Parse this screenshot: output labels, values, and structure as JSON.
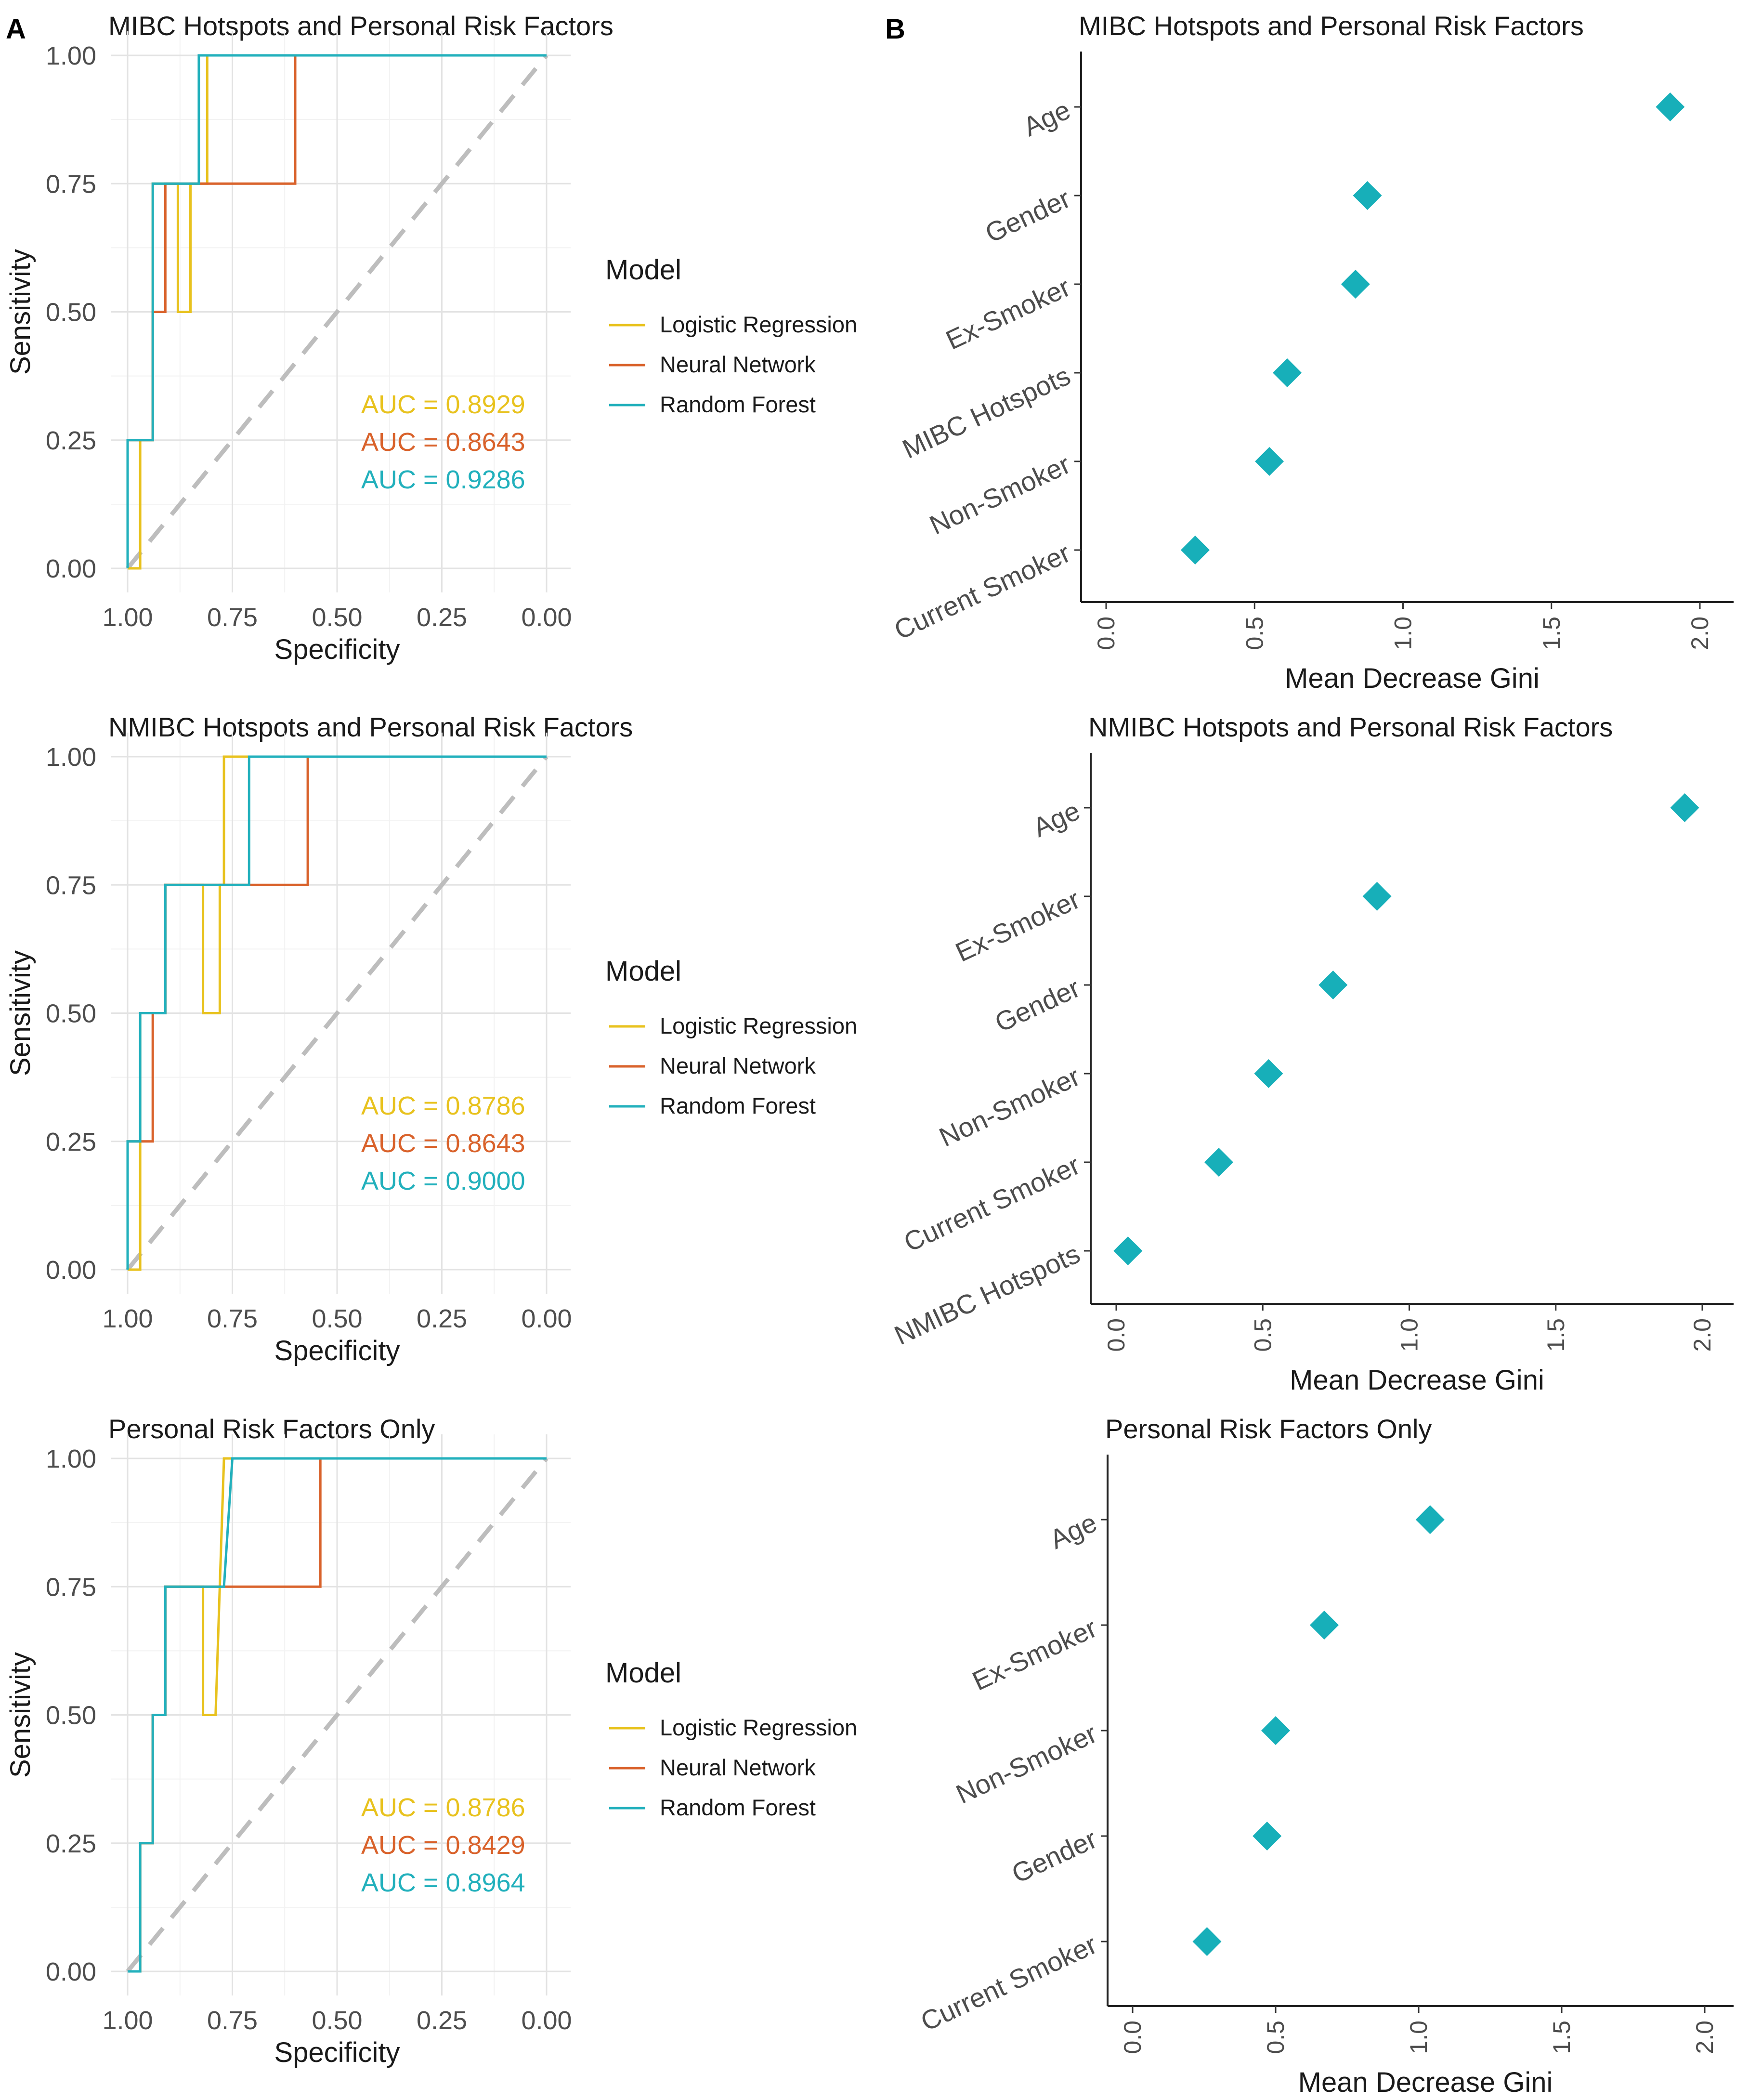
{
  "figure": {
    "panel_a_label": "A",
    "panel_b_label": "B",
    "legend_title": "Model"
  },
  "colors": {
    "logistic": "#E8C21E",
    "neural": "#D9622B",
    "forest": "#22B0BC",
    "diagonal": "#BDBDBD",
    "points": "#17AFB9"
  },
  "chart_data": [
    {
      "type": "line",
      "subtype": "roc",
      "title": "MIBC Hotspots and Personal Risk Factors",
      "xlabel": "Specificity",
      "ylabel": "Sensitivity",
      "xlim": [
        1.0,
        0.0
      ],
      "ylim": [
        0.0,
        1.0
      ],
      "xticks": [
        "1.00",
        "0.75",
        "0.50",
        "0.25",
        "0.00"
      ],
      "yticks": [
        "0.00",
        "0.25",
        "0.50",
        "0.75",
        "1.00"
      ],
      "grid": true,
      "legend_position": "right",
      "series": [
        {
          "name": "Logistic Regression",
          "color": "#E8C21E",
          "auc_label": "AUC = 0.8929",
          "points": [
            [
              1.0,
              0.0
            ],
            [
              0.97,
              0.0
            ],
            [
              0.97,
              0.25
            ],
            [
              0.94,
              0.25
            ],
            [
              0.94,
              0.75
            ],
            [
              0.88,
              0.75
            ],
            [
              0.88,
              0.5
            ],
            [
              0.85,
              0.5
            ],
            [
              0.85,
              0.75
            ],
            [
              0.81,
              0.75
            ],
            [
              0.81,
              1.0
            ],
            [
              0.0,
              1.0
            ]
          ]
        },
        {
          "name": "Neural Network",
          "color": "#D9622B",
          "auc_label": "AUC = 0.8643",
          "points": [
            [
              1.0,
              0.0
            ],
            [
              1.0,
              0.25
            ],
            [
              0.94,
              0.25
            ],
            [
              0.94,
              0.5
            ],
            [
              0.91,
              0.5
            ],
            [
              0.91,
              0.75
            ],
            [
              0.6,
              0.75
            ],
            [
              0.6,
              1.0
            ],
            [
              0.0,
              1.0
            ]
          ]
        },
        {
          "name": "Random Forest",
          "color": "#22B0BC",
          "auc_label": "AUC = 0.9286",
          "points": [
            [
              1.0,
              0.0
            ],
            [
              1.0,
              0.25
            ],
            [
              0.94,
              0.25
            ],
            [
              0.94,
              0.75
            ],
            [
              0.83,
              0.75
            ],
            [
              0.83,
              1.0
            ],
            [
              0.0,
              1.0
            ]
          ]
        }
      ]
    },
    {
      "type": "scatter",
      "subtype": "variable-importance",
      "title": "MIBC Hotspots and Personal Risk Factors",
      "xlabel": "Mean Decrease Gini",
      "xlim": [
        -0.08,
        2.08
      ],
      "xticks": [
        "0.0",
        "0.5",
        "1.0",
        "1.5",
        "2.0"
      ],
      "categories": [
        "Age",
        "Gender",
        "Ex-Smoker",
        "MIBC Hotspots",
        "Non-Smoker",
        "Current Smoker"
      ],
      "values": [
        1.9,
        0.88,
        0.84,
        0.61,
        0.55,
        0.3
      ]
    },
    {
      "type": "line",
      "subtype": "roc",
      "title": "NMIBC Hotspots and Personal Risk Factors",
      "xlabel": "Specificity",
      "ylabel": "Sensitivity",
      "xlim": [
        1.0,
        0.0
      ],
      "ylim": [
        0.0,
        1.0
      ],
      "xticks": [
        "1.00",
        "0.75",
        "0.50",
        "0.25",
        "0.00"
      ],
      "yticks": [
        "0.00",
        "0.25",
        "0.50",
        "0.75",
        "1.00"
      ],
      "grid": true,
      "legend_position": "right",
      "series": [
        {
          "name": "Logistic Regression",
          "color": "#E8C21E",
          "auc_label": "AUC = 0.8786",
          "points": [
            [
              1.0,
              0.0
            ],
            [
              0.97,
              0.0
            ],
            [
              0.97,
              0.5
            ],
            [
              0.91,
              0.5
            ],
            [
              0.91,
              0.75
            ],
            [
              0.82,
              0.75
            ],
            [
              0.82,
              0.5
            ],
            [
              0.78,
              0.5
            ],
            [
              0.78,
              0.75
            ],
            [
              0.77,
              0.75
            ],
            [
              0.77,
              1.0
            ],
            [
              0.0,
              1.0
            ]
          ]
        },
        {
          "name": "Neural Network",
          "color": "#D9622B",
          "auc_label": "AUC = 0.8643",
          "points": [
            [
              1.0,
              0.0
            ],
            [
              1.0,
              0.25
            ],
            [
              0.94,
              0.25
            ],
            [
              0.94,
              0.5
            ],
            [
              0.91,
              0.5
            ],
            [
              0.91,
              0.75
            ],
            [
              0.57,
              0.75
            ],
            [
              0.57,
              1.0
            ],
            [
              0.0,
              1.0
            ]
          ]
        },
        {
          "name": "Random Forest",
          "color": "#22B0BC",
          "auc_label": "AUC = 0.9000",
          "points": [
            [
              1.0,
              0.0
            ],
            [
              1.0,
              0.25
            ],
            [
              0.97,
              0.25
            ],
            [
              0.97,
              0.5
            ],
            [
              0.91,
              0.5
            ],
            [
              0.91,
              0.75
            ],
            [
              0.71,
              0.75
            ],
            [
              0.71,
              1.0
            ],
            [
              0.0,
              1.0
            ]
          ]
        }
      ]
    },
    {
      "type": "scatter",
      "subtype": "variable-importance",
      "title": "NMIBC Hotspots and Personal Risk Factors",
      "xlabel": "Mean Decrease Gini",
      "xlim": [
        -0.08,
        2.08
      ],
      "xticks": [
        "0.0",
        "0.5",
        "1.0",
        "1.5",
        "2.0"
      ],
      "categories": [
        "Age",
        "Ex-Smoker",
        "Gender",
        "Non-Smoker",
        "Current Smoker",
        "NMIBC Hotspots"
      ],
      "values": [
        1.94,
        0.89,
        0.74,
        0.52,
        0.35,
        0.04
      ]
    },
    {
      "type": "line",
      "subtype": "roc",
      "title": "Personal Risk Factors Only",
      "xlabel": "Specificity",
      "ylabel": "Sensitivity",
      "xlim": [
        1.0,
        0.0
      ],
      "ylim": [
        0.0,
        1.0
      ],
      "xticks": [
        "1.00",
        "0.75",
        "0.50",
        "0.25",
        "0.00"
      ],
      "yticks": [
        "0.00",
        "0.25",
        "0.50",
        "0.75",
        "1.00"
      ],
      "grid": true,
      "legend_position": "right",
      "series": [
        {
          "name": "Logistic Regression",
          "color": "#E8C21E",
          "auc_label": "AUC = 0.8786",
          "points": [
            [
              1.0,
              0.0
            ],
            [
              0.97,
              0.0
            ],
            [
              0.97,
              0.25
            ],
            [
              0.94,
              0.25
            ],
            [
              0.94,
              0.5
            ],
            [
              0.91,
              0.5
            ],
            [
              0.91,
              0.75
            ],
            [
              0.82,
              0.75
            ],
            [
              0.82,
              0.5
            ],
            [
              0.79,
              0.5
            ],
            [
              0.77,
              1.0
            ],
            [
              0.0,
              1.0
            ]
          ]
        },
        {
          "name": "Neural Network",
          "color": "#D9622B",
          "auc_label": "AUC = 0.8429",
          "points": [
            [
              1.0,
              0.0
            ],
            [
              0.97,
              0.0
            ],
            [
              0.97,
              0.25
            ],
            [
              0.94,
              0.25
            ],
            [
              0.94,
              0.5
            ],
            [
              0.91,
              0.5
            ],
            [
              0.91,
              0.75
            ],
            [
              0.54,
              0.75
            ],
            [
              0.54,
              1.0
            ],
            [
              0.0,
              1.0
            ]
          ]
        },
        {
          "name": "Random Forest",
          "color": "#22B0BC",
          "auc_label": "AUC = 0.8964",
          "points": [
            [
              1.0,
              0.0
            ],
            [
              0.97,
              0.0
            ],
            [
              0.97,
              0.25
            ],
            [
              0.94,
              0.25
            ],
            [
              0.94,
              0.5
            ],
            [
              0.91,
              0.5
            ],
            [
              0.91,
              0.75
            ],
            [
              0.77,
              0.75
            ],
            [
              0.75,
              1.0
            ],
            [
              0.0,
              1.0
            ]
          ]
        }
      ]
    },
    {
      "type": "scatter",
      "subtype": "variable-importance",
      "title": "Personal Risk Factors Only",
      "xlabel": "Mean Decrease Gini",
      "xlim": [
        -0.08,
        2.08
      ],
      "xticks": [
        "0.0",
        "0.5",
        "1.0",
        "1.5",
        "2.0"
      ],
      "categories": [
        "Age",
        "Ex-Smoker",
        "Non-Smoker",
        "Gender",
        "Current Smoker"
      ],
      "values": [
        1.04,
        0.67,
        0.5,
        0.47,
        0.26
      ]
    }
  ]
}
